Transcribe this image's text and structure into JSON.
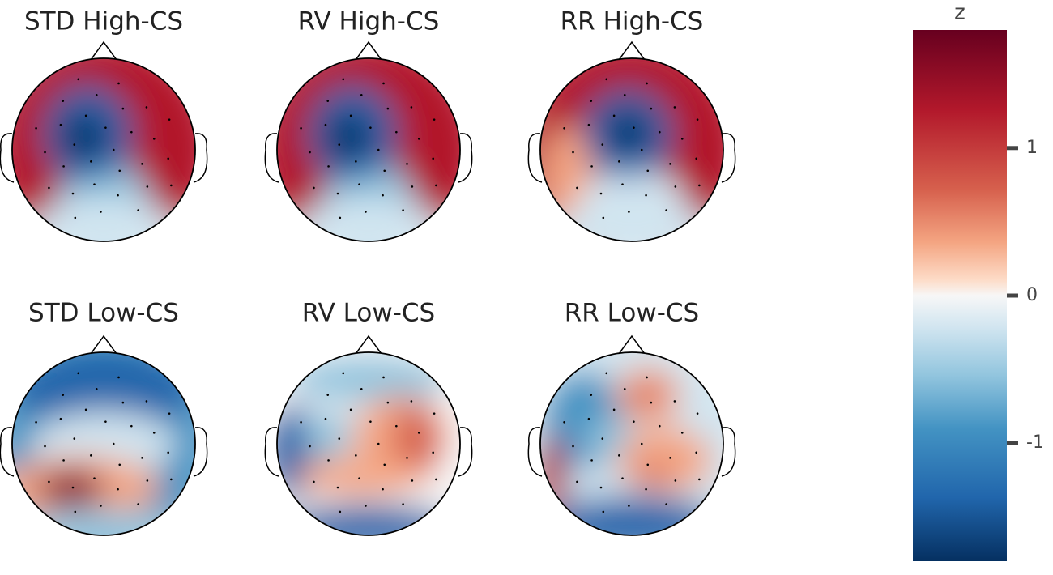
{
  "panels": [
    {
      "title": "STD High-CS"
    },
    {
      "title": "RV High-CS"
    },
    {
      "title": "RR High-CS"
    },
    {
      "title": "STD Low-CS"
    },
    {
      "title": "RV Low-CS"
    },
    {
      "title": "RR Low-CS"
    }
  ],
  "colorbar": {
    "label": "z",
    "lim": [
      -1.8,
      1.8
    ],
    "ticks": [
      1,
      0,
      -1
    ]
  }
}
